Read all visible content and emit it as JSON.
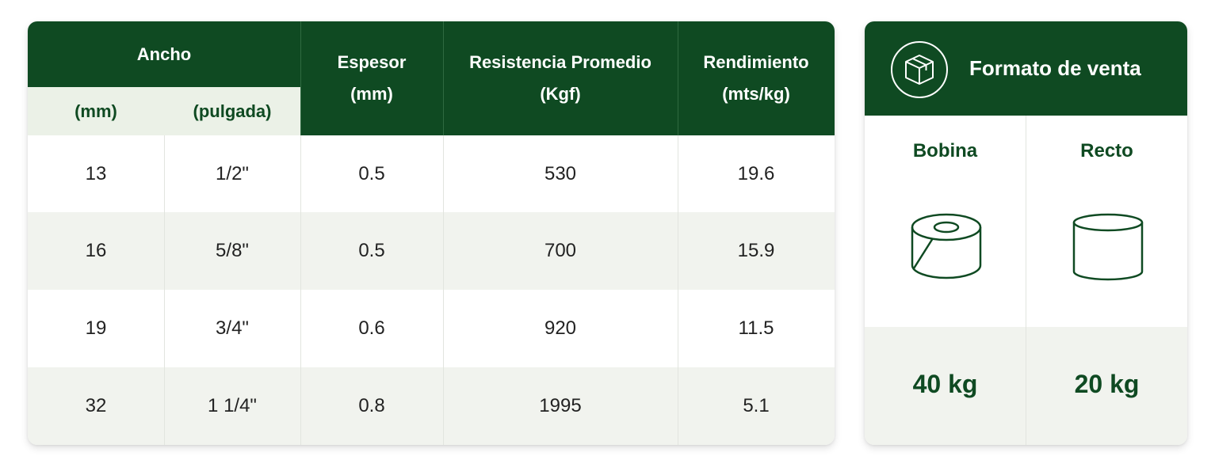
{
  "spec_table": {
    "headers": {
      "ancho": "Ancho",
      "ancho_mm": "(mm)",
      "ancho_pulgada": "(pulgada)",
      "espesor_line1": "Espesor",
      "espesor_line2": "(mm)",
      "resistencia_line1": "Resistencia Promedio",
      "resistencia_line2": "(Kgf)",
      "rendimiento_line1": "Rendimiento",
      "rendimiento_line2": "(mts/kg)"
    },
    "rows": [
      {
        "mm": "13",
        "pulgada": "1/2\"",
        "espesor": "0.5",
        "resistencia": "530",
        "rendimiento": "19.6"
      },
      {
        "mm": "16",
        "pulgada": "5/8\"",
        "espesor": "0.5",
        "resistencia": "700",
        "rendimiento": "15.9"
      },
      {
        "mm": "19",
        "pulgada": "3/4\"",
        "espesor": "0.6",
        "resistencia": "920",
        "rendimiento": "11.5"
      },
      {
        "mm": "32",
        "pulgada": "1 1/4\"",
        "espesor": "0.8",
        "resistencia": "1995",
        "rendimiento": "5.1"
      }
    ]
  },
  "format_card": {
    "title": "Formato de venta",
    "header_icon": "box-icon",
    "options": [
      {
        "label": "Bobina",
        "icon": "coil-roll-icon",
        "weight": "40 kg"
      },
      {
        "label": "Recto",
        "icon": "straight-cylinder-icon",
        "weight": "20 kg"
      }
    ]
  },
  "colors": {
    "primary_green": "#0f4a22",
    "subheader_bg": "#ebf1e7",
    "stripe_bg": "#f1f3ee"
  }
}
